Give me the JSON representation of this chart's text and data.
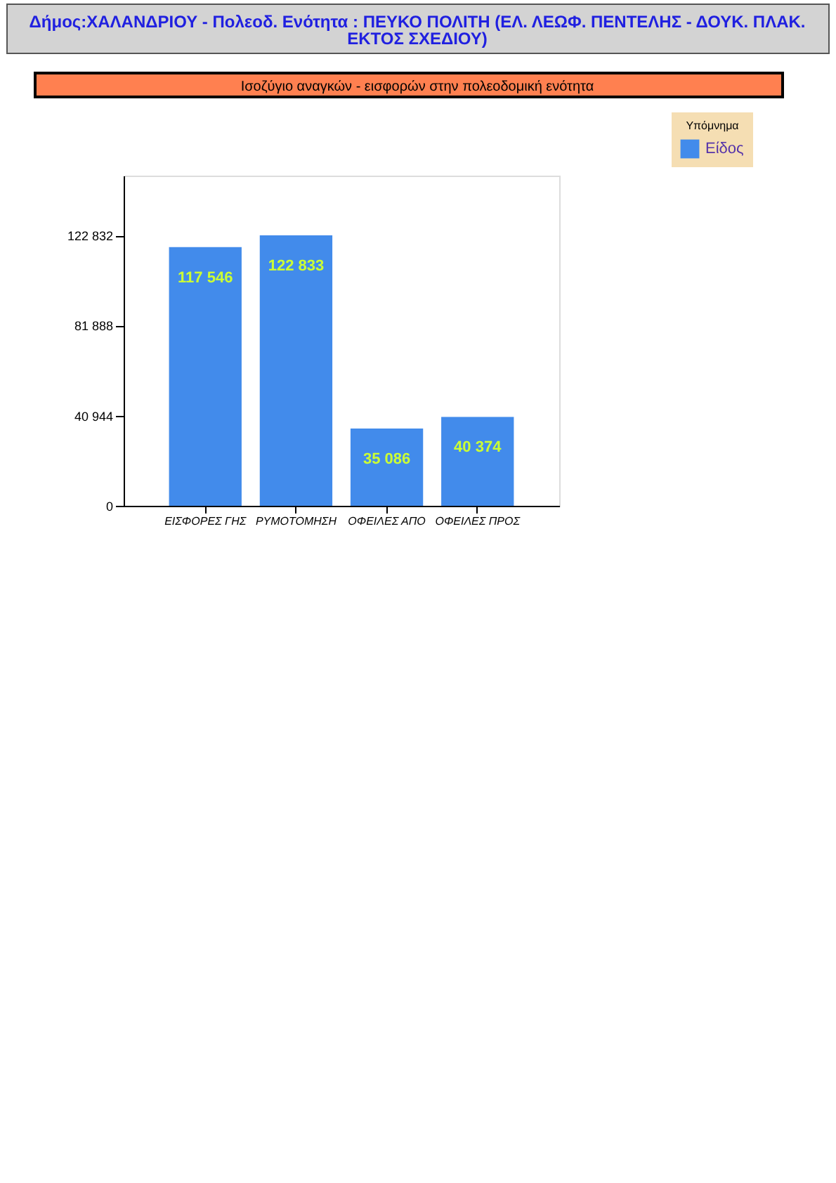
{
  "chart_data": {
    "type": "bar",
    "title": "Δήμος:ΧΑΛΑΝΔΡΙΟΥ    -    Πολεοδ. Ενότητα : ΠΕΥΚΟ ΠΟΛΙΤΗ (ΕΛ. ΛΕΩΦ. ΠΕΝΤΕΛΗΣ - ΔΟΥΚ. ΠΛΑΚ. ΕΚΤΟΣ ΣΧΕΔΙΟΥ)",
    "subtitle": "Ισοζύγιο αναγκών - εισφορών στην πολεοδομική ενότητα",
    "legend_title": "Υπόμνημα",
    "categories": [
      "ΕΙΣΦΟΡΕΣ ΓΗΣ",
      "ΡΥΜΟΤΟΜΗΣΗ",
      "ΟΦΕΙΛΕΣ ΑΠΟ",
      "ΟΦΕΙΛΕΣ ΠΡΟΣ"
    ],
    "series": [
      {
        "name": "Είδος",
        "color": "#428beb",
        "values": [
          117546,
          122833,
          35086,
          40374
        ],
        "value_labels": [
          "117 546",
          "122 833",
          "35 086",
          "40 374"
        ]
      }
    ],
    "ylim": [
      0,
      150000
    ],
    "yticks": [
      0,
      {
        "value": 40944,
        "label": "40 944"
      },
      {
        "value": 81888,
        "label": "81 888"
      },
      {
        "value": 122832,
        "label": "122 832"
      }
    ],
    "grid": false,
    "legend": "top right"
  }
}
